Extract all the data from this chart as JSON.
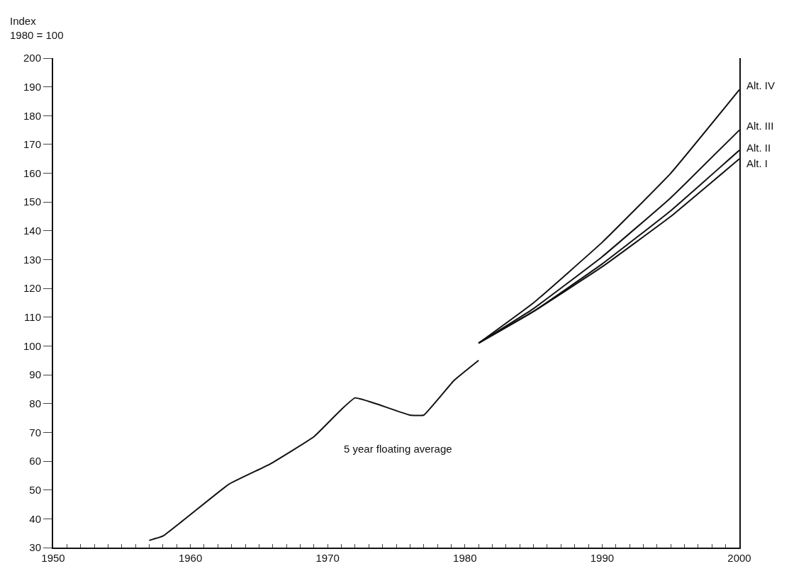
{
  "chart_data": {
    "type": "line",
    "ylabel": "Index\n1980 = 100",
    "series": [
      {
        "name": "5 year floating average",
        "color": "#111111",
        "x": [
          1957,
          1958,
          1962.8,
          1965.8,
          1969,
          1971,
          1972,
          1973.5,
          1976,
          1977,
          1979.2,
          1981
        ],
        "values": [
          32.5,
          34,
          52,
          59,
          68.5,
          78,
          82,
          80,
          76,
          76,
          88,
          95
        ]
      },
      {
        "name": "Alt. IV",
        "color": "#111111",
        "x": [
          1981,
          1985,
          1990,
          1995,
          2000
        ],
        "values": [
          101,
          115,
          136,
          160,
          189
        ]
      },
      {
        "name": "Alt. III",
        "color": "#111111",
        "x": [
          1981,
          1985,
          1990,
          1995,
          2000
        ],
        "values": [
          101,
          113,
          131,
          151.5,
          175
        ]
      },
      {
        "name": "Alt. II",
        "color": "#111111",
        "x": [
          1981,
          1985,
          1990,
          1995,
          2000
        ],
        "values": [
          101,
          112,
          128.5,
          147,
          168
        ]
      },
      {
        "name": "Alt. I",
        "color": "#111111",
        "x": [
          1981,
          1985,
          1990,
          1995,
          2000
        ],
        "values": [
          101,
          112,
          127.5,
          145,
          165
        ]
      }
    ],
    "xlim": [
      1950,
      2000
    ],
    "xticks": [
      1950,
      {
        "value": 1951,
        "label": null
      },
      {
        "value": 1952,
        "label": null
      },
      {
        "value": 1953,
        "label": null
      },
      {
        "value": 1954,
        "label": null
      },
      {
        "value": 1955,
        "label": null
      },
      {
        "value": 1956,
        "label": null
      },
      {
        "value": 1957,
        "label": null
      },
      {
        "value": 1958,
        "label": null
      },
      {
        "value": 1959,
        "label": null
      },
      1960,
      {
        "value": 1961,
        "label": null
      },
      {
        "value": 1962,
        "label": null
      },
      {
        "value": 1963,
        "label": null
      },
      {
        "value": 1964,
        "label": null
      },
      {
        "value": 1965,
        "label": null
      },
      {
        "value": 1966,
        "label": null
      },
      {
        "value": 1967,
        "label": null
      },
      {
        "value": 1968,
        "label": null
      },
      {
        "value": 1969,
        "label": null
      },
      1970,
      {
        "value": 1971,
        "label": null
      },
      {
        "value": 1972,
        "label": null
      },
      {
        "value": 1973,
        "label": null
      },
      {
        "value": 1974,
        "label": null
      },
      {
        "value": 1975,
        "label": null
      },
      {
        "value": 1976,
        "label": null
      },
      {
        "value": 1977,
        "label": null
      },
      {
        "value": 1978,
        "label": null
      },
      {
        "value": 1979,
        "label": null
      },
      1980,
      {
        "value": 1981,
        "label": null
      },
      {
        "value": 1982,
        "label": null
      },
      {
        "value": 1983,
        "label": null
      },
      {
        "value": 1984,
        "label": null
      },
      {
        "value": 1985,
        "label": null
      },
      {
        "value": 1986,
        "label": null
      },
      {
        "value": 1987,
        "label": null
      },
      {
        "value": 1988,
        "label": null
      },
      {
        "value": 1989,
        "label": null
      },
      1990,
      {
        "value": 1991,
        "label": null
      },
      {
        "value": 1992,
        "label": null
      },
      {
        "value": 1993,
        "label": null
      },
      {
        "value": 1994,
        "label": null
      },
      {
        "value": 1995,
        "label": null
      },
      {
        "value": 1996,
        "label": null
      },
      {
        "value": 1997,
        "label": null
      },
      {
        "value": 1998,
        "label": null
      },
      {
        "value": 1999,
        "label": null
      },
      2000
    ],
    "ylim": [
      30,
      200
    ],
    "yticks": [
      30,
      40,
      50,
      60,
      70,
      80,
      90,
      100,
      110,
      120,
      130,
      140,
      150,
      160,
      170,
      180,
      190,
      200
    ],
    "legend": false,
    "marker": "none",
    "line_style": "solid"
  }
}
